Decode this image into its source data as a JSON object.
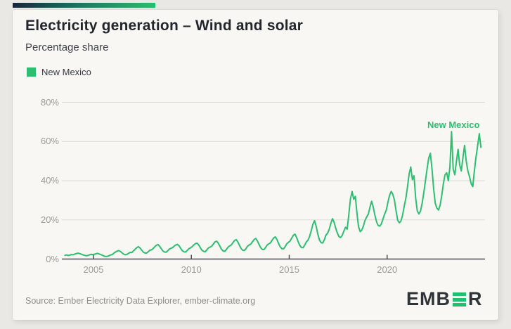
{
  "page": {
    "background_color": "#eae8e5",
    "card_background_color": "#f8f7f4"
  },
  "accent_bar": {
    "gradient_start_color": "#15273e",
    "gradient_end_color": "#2abd6e"
  },
  "header": {
    "title": "Electricity generation – Wind and solar",
    "subtitle": "Percentage share"
  },
  "legend": {
    "items": [
      {
        "label": "New Mexico",
        "color": "#2dbe70"
      }
    ]
  },
  "chart_data": {
    "type": "line",
    "title": "Electricity generation – Wind and solar",
    "subtitle": "Percentage share",
    "grid": "horizontal",
    "legend_position": "top-left",
    "x_axis": {
      "tick_labels": [
        "2005",
        "2010",
        "2015",
        "2020"
      ],
      "tick_years": [
        2005,
        2010,
        2015,
        2020
      ],
      "range_years": [
        2003.4,
        2025.0
      ]
    },
    "y_axis": {
      "tick_labels": [
        "0%",
        "20%",
        "40%",
        "60%",
        "80%"
      ],
      "tick_values": [
        0,
        20,
        40,
        60,
        80
      ],
      "range": [
        0,
        80
      ],
      "unit": "%"
    },
    "annotations": [
      {
        "text": "New Mexico",
        "color": "#2dbe70"
      }
    ],
    "series": [
      {
        "name": "New Mexico",
        "color": "#2dbe70",
        "unit": "%",
        "frequency": "monthly",
        "start_year": 2003,
        "start_month": 7,
        "values": [
          1.9,
          2.1,
          1.8,
          2.0,
          2.3,
          2.2,
          2.5,
          2.8,
          3.0,
          2.8,
          2.5,
          2.2,
          1.9,
          1.7,
          1.8,
          2.1,
          2.4,
          2.3,
          2.4,
          2.7,
          2.9,
          2.6,
          2.3,
          1.9,
          1.5,
          1.3,
          1.4,
          1.7,
          2.1,
          2.3,
          3.0,
          3.6,
          4.1,
          4.3,
          3.9,
          3.2,
          2.5,
          2.2,
          2.4,
          2.9,
          3.4,
          3.3,
          4.2,
          5.0,
          5.8,
          6.3,
          5.7,
          4.6,
          3.6,
          3.1,
          3.0,
          3.7,
          4.5,
          4.7,
          5.3,
          6.2,
          7.0,
          7.4,
          6.6,
          5.4,
          4.2,
          3.6,
          3.5,
          4.2,
          5.1,
          5.5,
          5.9,
          6.6,
          7.2,
          7.5,
          6.7,
          5.4,
          4.2,
          3.7,
          3.6,
          4.4,
          5.3,
          5.7,
          6.3,
          7.2,
          7.9,
          8.1,
          7.2,
          5.8,
          4.5,
          3.9,
          3.8,
          4.7,
          5.7,
          6.1,
          6.6,
          7.7,
          8.8,
          9.1,
          8.1,
          6.5,
          5.0,
          4.1,
          4.0,
          4.9,
          6.1,
          6.7,
          7.2,
          8.4,
          9.5,
          9.9,
          8.7,
          7.0,
          5.4,
          4.5,
          4.4,
          5.3,
          6.6,
          7.2,
          7.7,
          8.9,
          10.0,
          10.5,
          9.3,
          7.4,
          5.8,
          4.9,
          4.8,
          5.9,
          7.2,
          7.8,
          8.3,
          9.6,
          10.8,
          11.3,
          9.9,
          7.9,
          6.2,
          5.3,
          5.2,
          6.3,
          7.8,
          8.5,
          9.2,
          10.7,
          12.1,
          12.7,
          11.1,
          8.8,
          6.9,
          5.9,
          5.8,
          7.1,
          8.8,
          9.7,
          11.5,
          14.5,
          17.8,
          19.6,
          16.8,
          12.8,
          9.8,
          8.4,
          8.2,
          9.8,
          12.2,
          13.2,
          15.2,
          18.2,
          20.6,
          18.8,
          15.8,
          13.2,
          11.4,
          11.0,
          12.1,
          14.2,
          16.2,
          15.3,
          22.5,
          30.5,
          34.5,
          30.5,
          32.0,
          23.5,
          16.5,
          14.0,
          14.8,
          17.0,
          19.8,
          21.5,
          23.0,
          26.5,
          29.5,
          26.5,
          22.5,
          19.0,
          17.2,
          16.8,
          18.0,
          20.5,
          23.0,
          25.0,
          29.0,
          32.5,
          34.5,
          33.0,
          30.0,
          24.5,
          19.8,
          18.5,
          19.5,
          22.5,
          27.0,
          31.0,
          37.0,
          43.5,
          47.0,
          40.5,
          42.5,
          31.0,
          24.5,
          23.0,
          24.5,
          28.5,
          34.0,
          40.0,
          46.0,
          51.5,
          54.0,
          46.0,
          36.0,
          28.5,
          26.0,
          25.0,
          27.5,
          32.5,
          38.5,
          43.0,
          44.0,
          40.0,
          47.0,
          65.0,
          46.0,
          43.0,
          50.0,
          56.0,
          48.0,
          45.0,
          52.0,
          58.0,
          50.0,
          45.0,
          42.0,
          38.5,
          37.0,
          45.0,
          52.0,
          58.0,
          64.0,
          57.0
        ]
      }
    ]
  },
  "footer": {
    "source": "Source: Ember Electricity Data Explorer, ember-climate.org",
    "logo": {
      "part1": "EMB",
      "part2": "R",
      "bars_color": "#1fc06f",
      "text_color": "#2f3438"
    }
  }
}
